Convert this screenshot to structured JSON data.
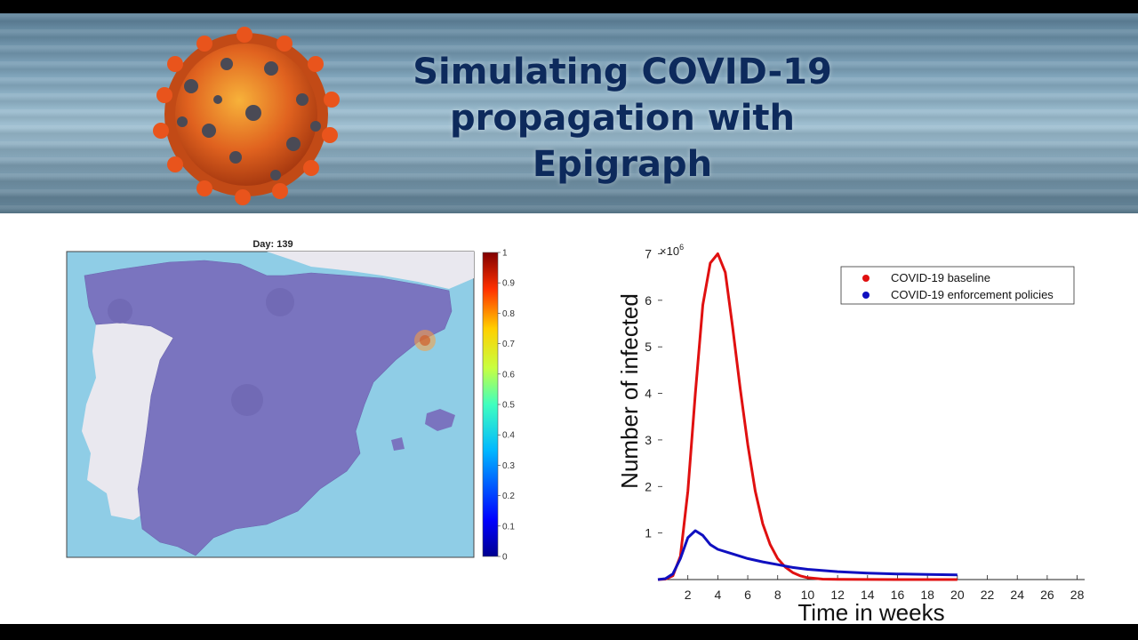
{
  "banner": {
    "title_lines": [
      "Simulating COVID-19",
      "propagation with",
      "Epigraph"
    ],
    "virus_image": "coronavirus-illustration"
  },
  "map": {
    "title": "Day: 139",
    "colorbar": {
      "ticks": [
        "1",
        "0.9",
        "0.8",
        "0.7",
        "0.6",
        "0.5",
        "0.4",
        "0.3",
        "0.2",
        "0.1",
        "0"
      ],
      "colors": [
        "#00008f",
        "#0050ff",
        "#00c8ff",
        "#40ffbf",
        "#c8ff40",
        "#ffcf00",
        "#ff5000",
        "#c00000",
        "#800000"
      ]
    },
    "colors": {
      "sea": "#8fcde6",
      "spain": "#7a74bf",
      "portugal": "#e9e8ef",
      "hotspot": "#ff9f3a"
    }
  },
  "chart_data": {
    "type": "line",
    "xlabel": "Time in weeks",
    "ylabel": "Number of infected",
    "y_multiplier_label": "×10",
    "y_multiplier_exponent": "6",
    "xlim": [
      0,
      28.5
    ],
    "ylim": [
      0,
      7.2
    ],
    "xticks": [
      2,
      4,
      6,
      8,
      10,
      12,
      14,
      16,
      18,
      20,
      22,
      24,
      26,
      28
    ],
    "yticks": [
      1,
      2,
      3,
      4,
      5,
      6,
      7
    ],
    "legend_position": "top-right",
    "series": [
      {
        "name": "COVID-19 baseline",
        "color": "#e01010",
        "x": [
          0,
          0.5,
          1,
          1.5,
          2,
          2.5,
          3,
          3.5,
          4,
          4.5,
          5,
          5.5,
          6,
          6.5,
          7,
          7.5,
          8,
          8.5,
          9,
          9.5,
          10,
          11,
          12,
          14,
          16,
          18,
          20
        ],
        "y": [
          0,
          0.01,
          0.08,
          0.5,
          1.9,
          4.0,
          5.9,
          6.8,
          7.0,
          6.6,
          5.4,
          4.1,
          2.9,
          1.9,
          1.2,
          0.75,
          0.45,
          0.27,
          0.15,
          0.08,
          0.04,
          0.01,
          0.004,
          0.001,
          0,
          0,
          0
        ]
      },
      {
        "name": "COVID-19 enforcement policies",
        "color": "#1010c0",
        "x": [
          0,
          0.5,
          1,
          1.5,
          2,
          2.5,
          3,
          3.5,
          4,
          5,
          6,
          7,
          8,
          9,
          10,
          12,
          14,
          16,
          18,
          20
        ],
        "y": [
          0,
          0.02,
          0.12,
          0.45,
          0.9,
          1.05,
          0.95,
          0.75,
          0.65,
          0.55,
          0.45,
          0.38,
          0.32,
          0.26,
          0.22,
          0.17,
          0.14,
          0.12,
          0.11,
          0.1
        ]
      }
    ]
  }
}
